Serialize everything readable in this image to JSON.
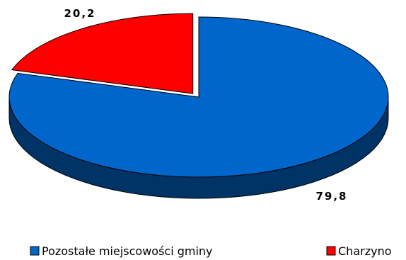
{
  "chart_data": {
    "type": "pie",
    "style": "3d",
    "categories": [
      "Pozostałe miejscowości gminy",
      "Charzyno"
    ],
    "values": [
      79.8,
      20.2
    ],
    "data_labels": [
      "79,8",
      "20,2"
    ],
    "colors": {
      "Pozostałe miejscowości gminy": "#0066CC",
      "Charzyno": "#FF0000"
    },
    "exploded": "Charzyno",
    "legend_position": "bottom"
  }
}
